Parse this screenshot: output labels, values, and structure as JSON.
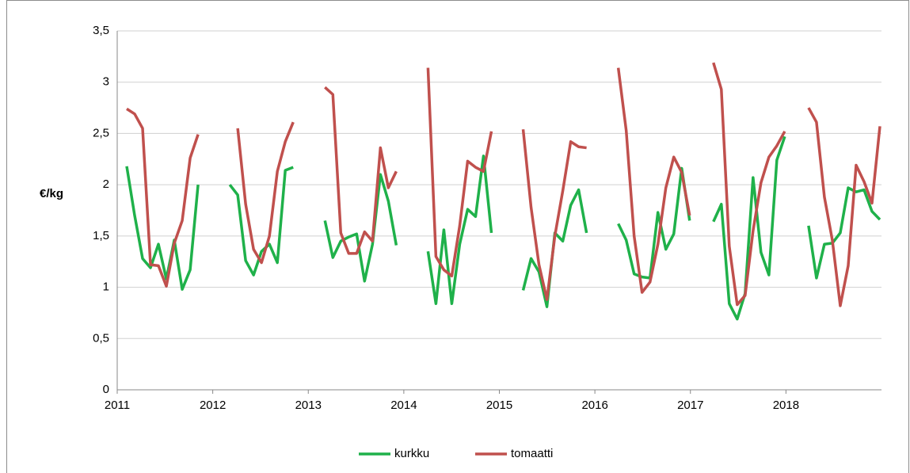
{
  "chart_data": {
    "type": "line",
    "y_label": "€/kg",
    "categories": [
      "2011",
      null,
      null,
      null,
      null,
      null,
      null,
      null,
      null,
      null,
      null,
      null,
      "2012",
      null,
      null,
      null,
      null,
      null,
      null,
      null,
      null,
      null,
      null,
      null,
      "2013",
      null,
      null,
      null,
      null,
      null,
      null,
      null,
      null,
      null,
      null,
      null,
      "2014",
      null,
      null,
      null,
      null,
      null,
      null,
      null,
      null,
      null,
      null,
      null,
      "2015",
      null,
      null,
      null,
      null,
      null,
      null,
      null,
      null,
      null,
      null,
      null,
      "2016",
      null,
      null,
      null,
      null,
      null,
      null,
      null,
      null,
      null,
      null,
      null,
      "2017",
      null,
      null,
      null,
      null,
      null,
      null,
      null,
      null,
      null,
      null,
      null,
      "2018",
      null,
      null,
      null,
      null,
      null,
      null,
      null,
      null,
      null,
      null,
      null
    ],
    "series": [
      {
        "name": "kurkku",
        "color": "#1fb14a",
        "values": [
          2.18,
          1.7,
          1.28,
          1.19,
          1.42,
          1.08,
          1.46,
          0.98,
          1.17,
          2.0,
          null,
          null,
          null,
          2.0,
          1.9,
          1.26,
          1.12,
          1.35,
          1.42,
          1.24,
          2.14,
          2.17,
          null,
          null,
          null,
          1.65,
          1.29,
          1.45,
          1.49,
          1.52,
          1.06,
          1.42,
          2.1,
          1.84,
          1.41,
          null,
          null,
          null,
          1.35,
          0.84,
          1.56,
          0.84,
          1.42,
          1.76,
          1.69,
          2.28,
          1.53,
          null,
          null,
          null,
          0.97,
          1.28,
          1.15,
          0.81,
          1.53,
          1.45,
          1.8,
          1.95,
          1.53,
          null,
          null,
          null,
          1.62,
          1.46,
          1.13,
          1.1,
          1.09,
          1.73,
          1.37,
          1.52,
          2.16,
          1.65,
          null,
          null,
          1.64,
          1.81,
          0.84,
          0.69,
          0.94,
          2.07,
          1.34,
          1.12,
          2.24,
          2.47,
          null,
          null,
          1.6,
          1.09,
          1.42,
          1.43,
          1.53,
          1.97,
          1.93,
          1.95,
          1.74,
          1.66
        ]
      },
      {
        "name": "tomaatti",
        "color": "#c0504d",
        "values": [
          2.74,
          2.69,
          2.55,
          1.22,
          1.21,
          1.01,
          1.43,
          1.65,
          2.26,
          2.49,
          null,
          null,
          null,
          null,
          2.55,
          1.81,
          1.37,
          1.24,
          1.5,
          2.13,
          2.42,
          2.61,
          null,
          null,
          null,
          2.95,
          2.88,
          1.53,
          1.33,
          1.33,
          1.54,
          1.45,
          2.36,
          1.97,
          2.13,
          null,
          null,
          null,
          3.14,
          1.3,
          1.17,
          1.11,
          1.6,
          2.23,
          2.17,
          2.13,
          2.52,
          null,
          null,
          null,
          2.54,
          1.78,
          1.22,
          0.88,
          1.5,
          1.94,
          2.42,
          2.37,
          2.36,
          null,
          null,
          null,
          3.14,
          2.53,
          1.5,
          0.95,
          1.05,
          1.42,
          1.97,
          2.27,
          2.12,
          1.7,
          null,
          null,
          3.19,
          2.93,
          1.4,
          0.83,
          0.92,
          1.55,
          2.02,
          2.27,
          2.38,
          2.52,
          null,
          null,
          2.75,
          2.61,
          1.88,
          1.46,
          0.82,
          1.21,
          2.19,
          2.03,
          1.82,
          2.57
        ]
      }
    ],
    "ylim": [
      0,
      3.5
    ],
    "yticks": [
      0,
      {
        "value": 0.5,
        "label": "0,5"
      },
      1,
      {
        "value": 1.5,
        "label": "1,5"
      },
      2,
      {
        "value": 2.5,
        "label": "2,5"
      },
      3,
      {
        "value": 3.5,
        "label": "3,5"
      }
    ],
    "grid": true,
    "legend": "bottom"
  }
}
